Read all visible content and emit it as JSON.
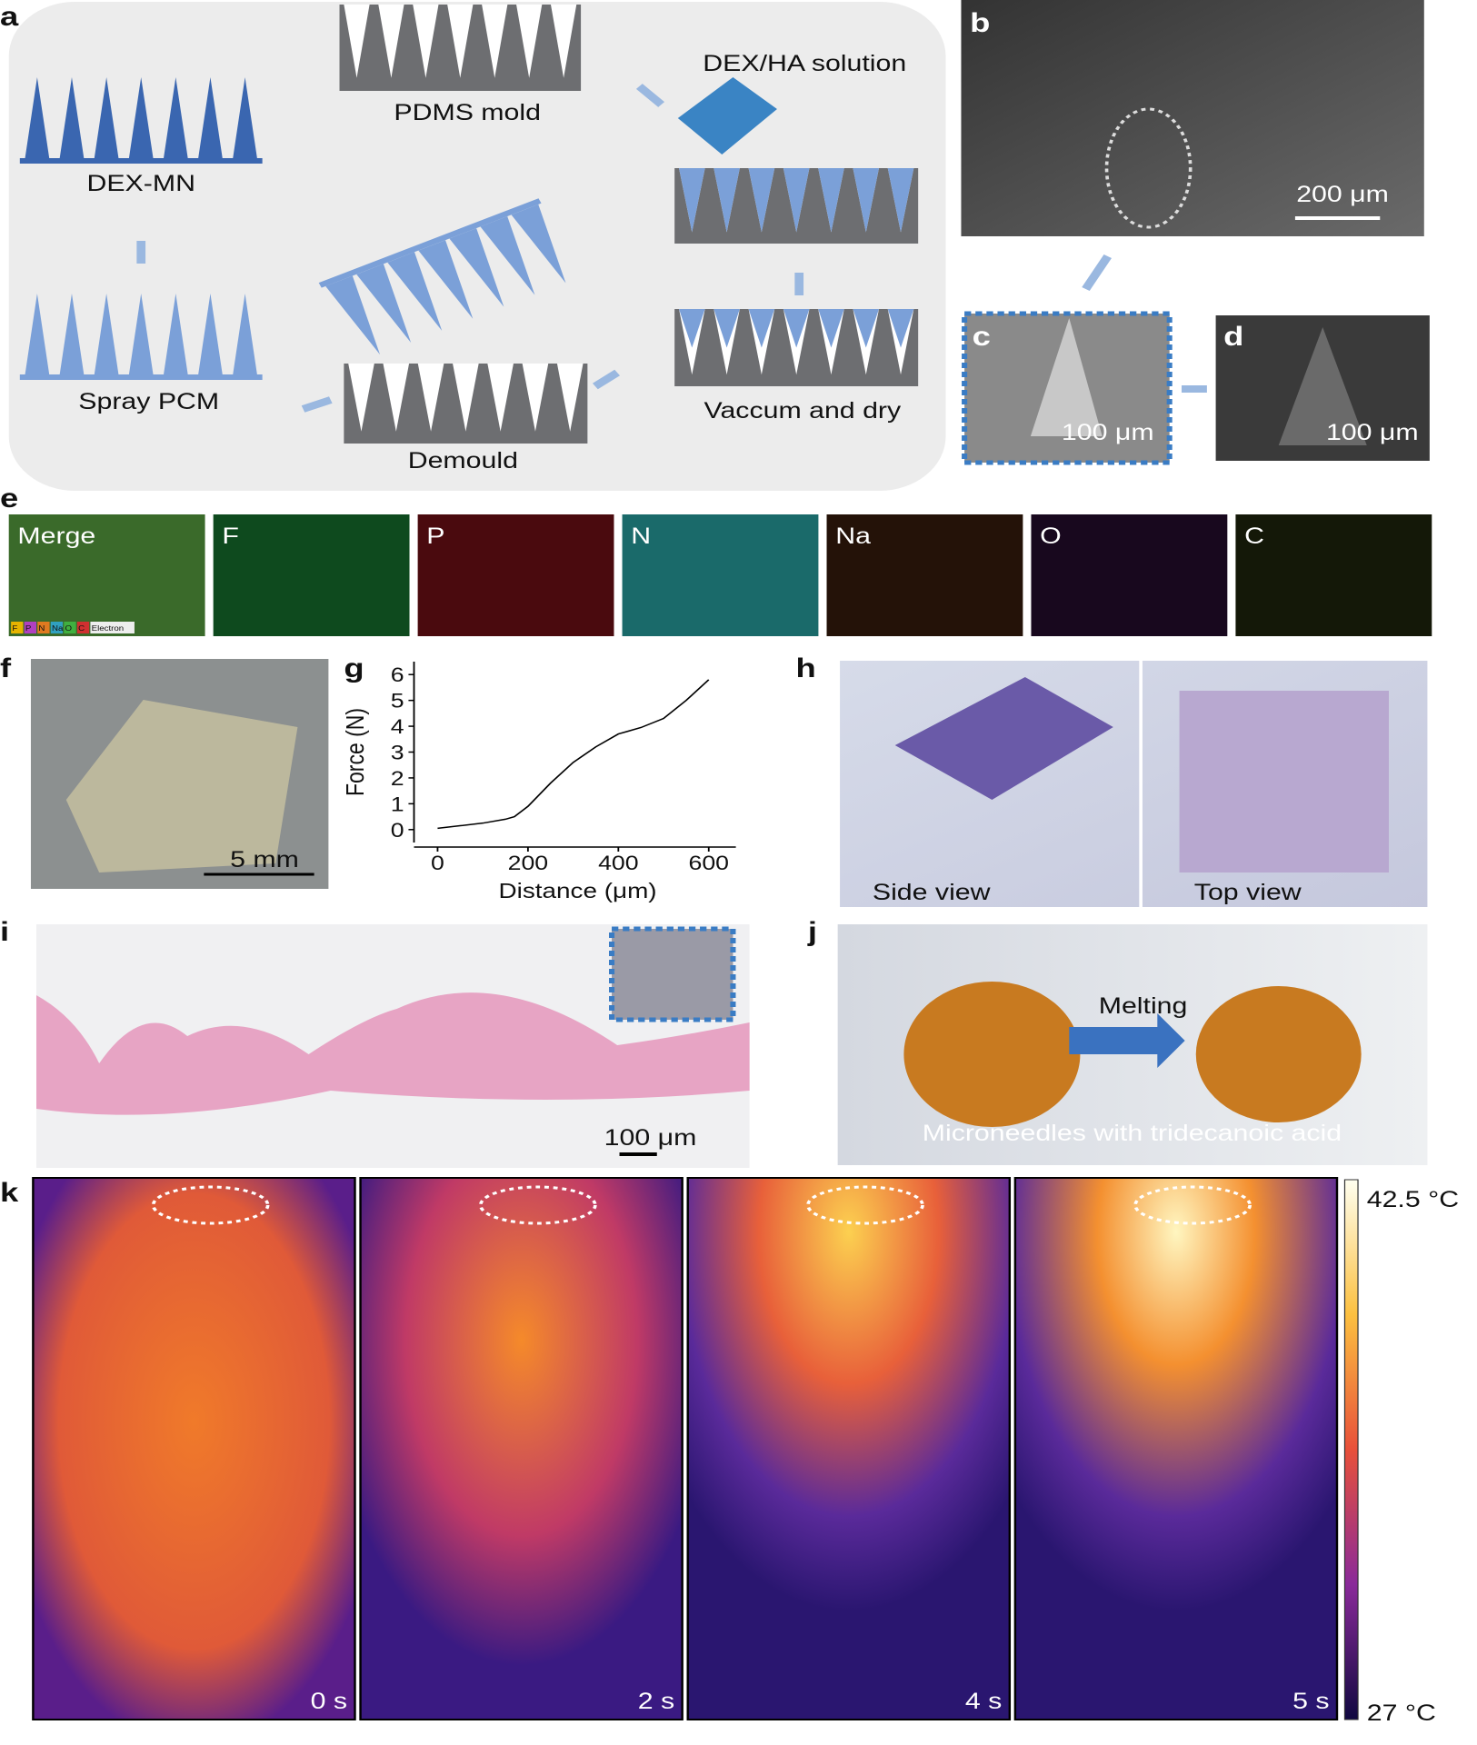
{
  "panels": {
    "labels": [
      "a",
      "b",
      "c",
      "d",
      "e",
      "f",
      "g",
      "h",
      "i",
      "j",
      "k"
    ]
  },
  "schematic": {
    "pdms": "PDMS mold",
    "solution": "DEX/HA solution",
    "dexmn": "DEX-MN",
    "vaccum": "Vaccum and dry",
    "spray": "Spray PCM",
    "demould": "Demould"
  },
  "sem": {
    "b_scale": "200 μm",
    "c_scale": "100 μm",
    "d_scale": "100 μm"
  },
  "eds": {
    "tiles": [
      "Merge",
      "F",
      "P",
      "N",
      "Na",
      "O",
      "C"
    ],
    "legend": [
      "F",
      "P",
      "N",
      "Na",
      "O",
      "C",
      "Electron"
    ]
  },
  "photo_f": {
    "scale": "5 mm"
  },
  "chart_data": {
    "type": "line",
    "xlabel": "Distance (μm)",
    "ylabel": "Force (N)",
    "x": [
      0,
      50,
      100,
      150,
      170,
      200,
      250,
      300,
      350,
      400,
      420,
      450,
      500,
      550,
      600
    ],
    "values": [
      0.05,
      0.15,
      0.25,
      0.4,
      0.5,
      0.9,
      1.8,
      2.6,
      3.2,
      3.7,
      3.8,
      3.95,
      4.3,
      5.0,
      5.8
    ],
    "color": "#000000",
    "xlim": [
      -40,
      660
    ],
    "ylim": [
      -0.5,
      6.5
    ],
    "xticks": [
      0,
      200,
      400,
      600
    ],
    "yticks": [
      0,
      1,
      2,
      3,
      4,
      5,
      6
    ]
  },
  "photo_h": {
    "side": "Side view",
    "top": "Top view"
  },
  "histo_i": {
    "scale": "100 μm"
  },
  "photo_j": {
    "melting": "Melting",
    "caption": "Microneedles with tridecanoic acid"
  },
  "thermal_k": {
    "times": [
      "0 s",
      "2 s",
      "4 s",
      "5 s"
    ],
    "max": "42.5 °C",
    "min": "27 °C"
  }
}
